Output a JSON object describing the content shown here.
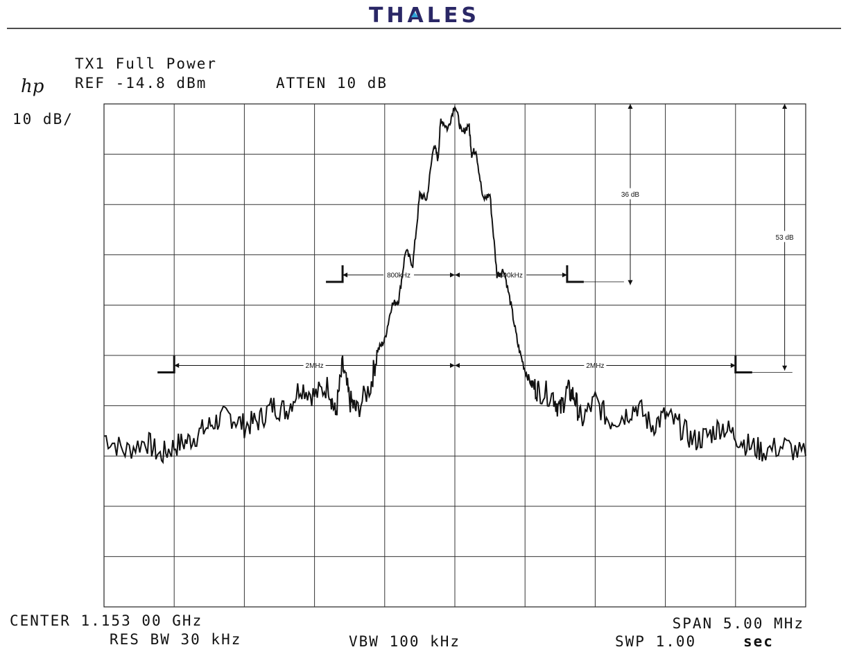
{
  "header": {
    "brand": "THALES",
    "logo_text": "hp",
    "line1": "TX1 Full Power",
    "ref": "REF -14.8 dBm",
    "atten": "ATTEN 10 dB",
    "scale": "10 dB/"
  },
  "footer": {
    "center": "CENTER 1.153 00 GHz",
    "span": "SPAN 5.00 MHz",
    "res_bw": "RES BW 30 kHz",
    "vbw": "VBW 100 kHz",
    "swp": "SWP 1.00",
    "swp_unit": "sec"
  },
  "colors": {
    "brand": "#2a2766",
    "brand_accent": "#2fa3d8",
    "trace": "#111111",
    "grid": "#222222"
  },
  "chart_data": {
    "type": "line",
    "title": "TX1 Full Power",
    "center_ghz": 1.153,
    "span_mhz": 5.0,
    "ref_level_dbm": -14.8,
    "db_per_div": 10,
    "x_divisions": 10,
    "y_divisions": 10,
    "xlim_mhz": [
      -2.5,
      2.5
    ],
    "ylim_db_below_ref": [
      -100,
      0
    ],
    "grid": true,
    "series": [
      {
        "x_mhz": [
          -2.5,
          -2.35,
          -2.2,
          -2.1,
          -2.0,
          -1.9,
          -1.8,
          -1.7,
          -1.6,
          -1.5,
          -1.4,
          -1.3,
          -1.2,
          -1.1,
          -1.0,
          -0.9,
          -0.85,
          -0.8,
          -0.75,
          -0.7,
          -0.6,
          -0.55,
          -0.5,
          -0.45,
          -0.4,
          -0.35,
          -0.3,
          -0.25,
          -0.2,
          -0.15,
          -0.12,
          -0.1,
          -0.05,
          0.0,
          0.05,
          0.1,
          0.12,
          0.15,
          0.2,
          0.25,
          0.3,
          0.35,
          0.4,
          0.45,
          0.5,
          0.55,
          0.6,
          0.7,
          0.75,
          0.8,
          0.85,
          0.9,
          1.0,
          1.1,
          1.2,
          1.3,
          1.4,
          1.5,
          1.6,
          1.7,
          1.8,
          1.9,
          2.0,
          2.1,
          2.2,
          2.35,
          2.5
        ],
        "y_db": [
          -66,
          -69,
          -67,
          -70,
          -68,
          -67,
          -65,
          -63,
          -62,
          -64,
          -63,
          -60,
          -61,
          -56,
          -58,
          -56,
          -62,
          -52,
          -59,
          -61,
          -56,
          -49,
          -47,
          -40,
          -39,
          -29,
          -32,
          -18,
          -19,
          -8,
          -11,
          -3,
          -5,
          0,
          -6,
          -4,
          -10,
          -9,
          -19,
          -18,
          -34,
          -33,
          -40,
          -48,
          -53,
          -56,
          -57,
          -58,
          -61,
          -57,
          -58,
          -63,
          -59,
          -63,
          -62,
          -60,
          -64,
          -62,
          -64,
          -67,
          -66,
          -64,
          -66,
          -68,
          -69,
          -68,
          -70
        ]
      }
    ],
    "annotations": [
      {
        "text": "800kHz",
        "from_mhz": -0.8,
        "to_mhz": 0.0,
        "level_db": -34
      },
      {
        "text": "800kHz",
        "from_mhz": 0.0,
        "to_mhz": 0.8,
        "level_db": -34
      },
      {
        "text": "2MHz",
        "from_mhz": -2.0,
        "to_mhz": 0.0,
        "level_db": -52
      },
      {
        "text": "2MHz",
        "from_mhz": 0.0,
        "to_mhz": 2.0,
        "level_db": -52
      },
      {
        "text": "36 dB",
        "at_mhz": 1.25,
        "from_db": 0,
        "to_db": -36
      },
      {
        "text": "53 dB",
        "at_mhz": 2.35,
        "from_db": 0,
        "to_db": -53
      }
    ]
  }
}
